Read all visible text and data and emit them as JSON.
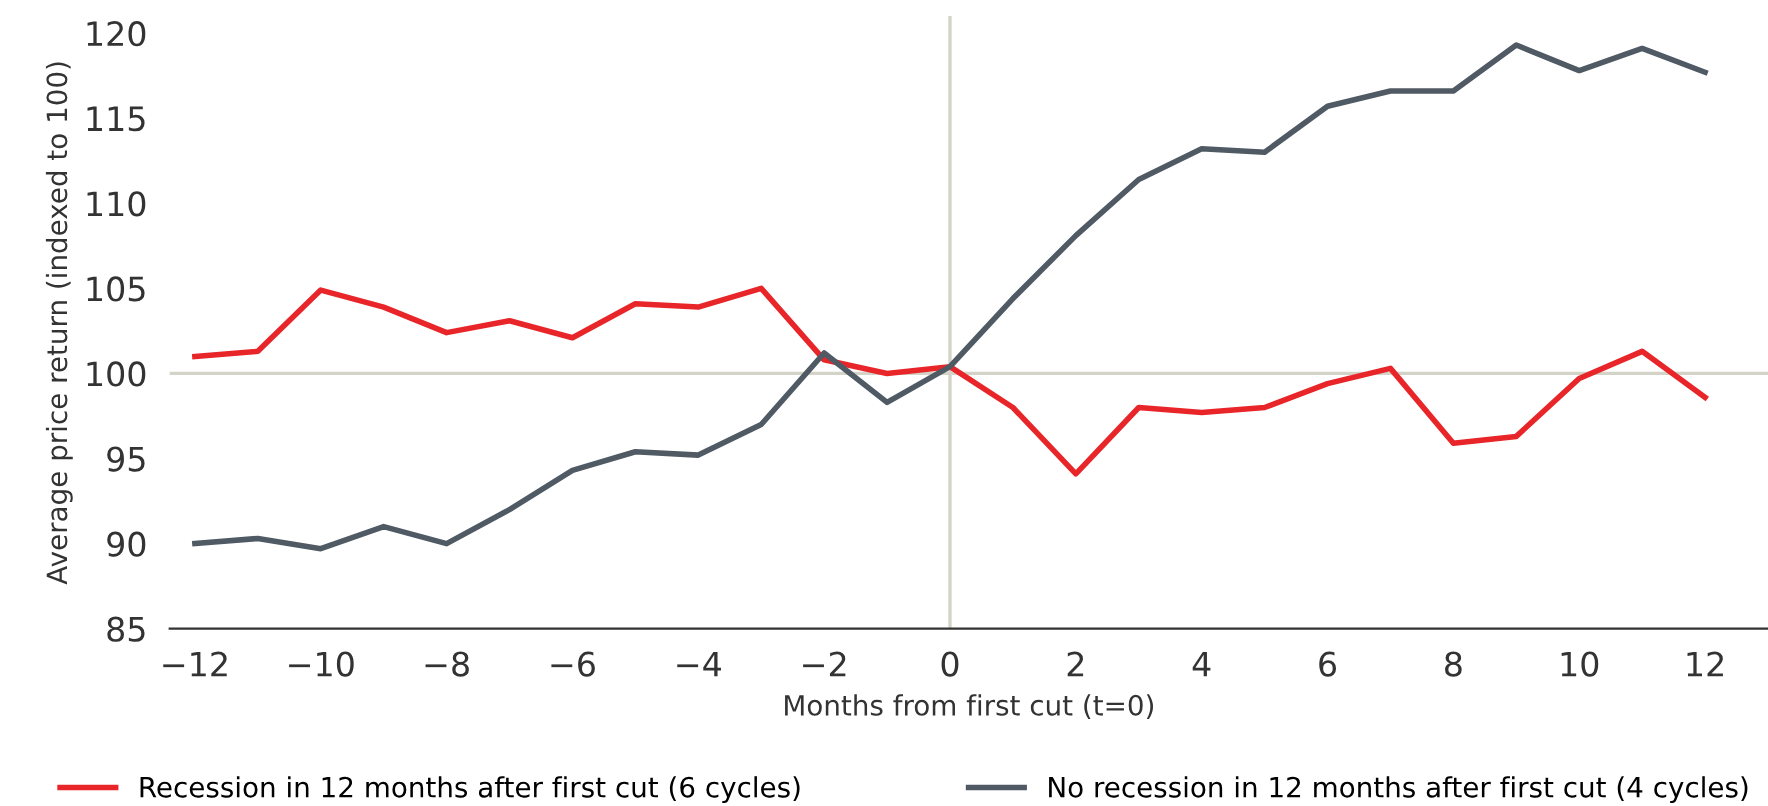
{
  "chart_data": {
    "type": "line",
    "xlabel": "Months from first cut (t=0)",
    "ylabel": "Average price return (indexed to 100)",
    "x": [
      -12,
      -11,
      -10,
      -9,
      -8,
      -7,
      -6,
      -5,
      -4,
      -3,
      -2,
      -1,
      0,
      1,
      2,
      3,
      4,
      5,
      6,
      7,
      8,
      9,
      10,
      11,
      12
    ],
    "series": [
      {
        "name": "Recession in 12 months after first cut (6 cycles)",
        "color": "#e8262a",
        "values": [
          101.0,
          101.3,
          104.9,
          103.9,
          102.4,
          103.1,
          102.1,
          104.1,
          103.9,
          105.0,
          100.8,
          100.0,
          100.4,
          98.0,
          94.1,
          98.0,
          97.7,
          98.0,
          99.4,
          100.3,
          95.9,
          96.3,
          99.7,
          101.3,
          98.6
        ]
      },
      {
        "name": "No recession in 12 months after first cut (4 cycles)",
        "color": "#505a64",
        "values": [
          90.0,
          90.3,
          89.7,
          91.0,
          90.0,
          92.0,
          94.3,
          95.4,
          95.2,
          97.0,
          101.2,
          98.3,
          100.4,
          104.4,
          108.1,
          111.4,
          113.2,
          113.0,
          115.7,
          116.6,
          116.6,
          119.3,
          117.8,
          119.1,
          117.7
        ]
      }
    ],
    "xlim": [
      -12.4,
      13.0
    ],
    "xticks": [
      {
        "value": -12,
        "label": "−12"
      },
      {
        "value": -10,
        "label": "−10"
      },
      {
        "value": -8,
        "label": "−8"
      },
      {
        "value": -6,
        "label": "−6"
      },
      {
        "value": -4,
        "label": "−4"
      },
      {
        "value": -2,
        "label": "−2"
      },
      0,
      2,
      4,
      6,
      8,
      10,
      12
    ],
    "ylim": [
      85,
      121
    ],
    "yticks": [
      85,
      90,
      95,
      100,
      105,
      110,
      115,
      120
    ],
    "ref_lines": [
      {
        "axis": "y",
        "value": 100,
        "color": "#d4d3c8"
      },
      {
        "axis": "x",
        "value": 0,
        "color": "#d4d3c8"
      }
    ],
    "legend": "bottom",
    "grid": false,
    "marker": "none",
    "line_style": "solid"
  }
}
